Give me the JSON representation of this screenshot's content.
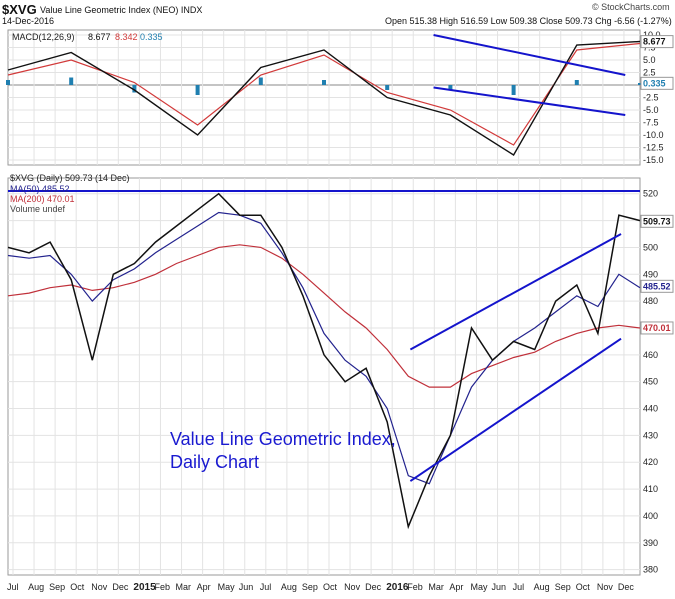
{
  "header": {
    "symbol": "$XVG",
    "name": "Value Line Geometric Index (NEO) INDX",
    "date": "14-Dec-2016",
    "quote": "Open 515.38  High 516.59  Low 509.38  Close 509.73  Chg -6.56 (-1.27%)",
    "source": "© StockCharts.com"
  },
  "macd_panel": {
    "label": "MACD(12,26,9)",
    "macd": "8.677",
    "signal": "8.342",
    "hist": "0.335",
    "ticks": [
      "10.0",
      "7.5",
      "5.0",
      "2.5",
      "0.0",
      "-2.5",
      "-5.0",
      "-7.5",
      "-10.0",
      "-12.5",
      "-15.0"
    ],
    "badge_macd": "8.677",
    "badge_hist": "0.335"
  },
  "price_panel": {
    "legend_main": "$XVG (Daily) 509.73 (14 Dec)",
    "legend_ma50": "MA(50) 485.52",
    "legend_ma200": "MA(200) 470.01",
    "legend_vol": "Volume undef",
    "ticks": [
      "520",
      "510",
      "500",
      "490",
      "480",
      "470",
      "460",
      "450",
      "440",
      "430",
      "420",
      "410",
      "400",
      "390",
      "380"
    ],
    "badge_last": "509.73",
    "badge_ma50": "485.52",
    "badge_ma200": "470.01",
    "annotation_line1": "Value Line Geometric Index,",
    "annotation_line2": "Daily Chart"
  },
  "x_axis": {
    "labels": [
      "Jul",
      "Aug",
      "Sep",
      "Oct",
      "Nov",
      "Dec",
      "2015",
      "Feb",
      "Mar",
      "Apr",
      "May",
      "Jun",
      "Jul",
      "Aug",
      "Sep",
      "Oct",
      "Nov",
      "Dec",
      "2016",
      "Feb",
      "Mar",
      "Apr",
      "May",
      "Jun",
      "Jul",
      "Aug",
      "Sep",
      "Oct",
      "Nov",
      "Dec"
    ]
  },
  "colors": {
    "price": "#111111",
    "ma50": "#23238e",
    "ma200": "#c0303a",
    "macd_line": "#111111",
    "signal_line": "#d23a3a",
    "histogram": "#1f7fb0",
    "trendline": "#1414cc",
    "grid": "#e3e3e3"
  },
  "chart_data": [
    {
      "type": "line",
      "title": "MACD(12,26,9)",
      "ylim": [
        -16,
        11
      ],
      "x": [
        0,
        3,
        6,
        9,
        12,
        15,
        18,
        21,
        24,
        27,
        30
      ],
      "series": [
        {
          "name": "MACD",
          "values": [
            3,
            6.5,
            -1,
            -10,
            3.5,
            7,
            -2.5,
            -6,
            -14,
            8,
            8.7
          ]
        },
        {
          "name": "Signal",
          "values": [
            2,
            5,
            0.5,
            -8,
            2,
            6,
            -1.5,
            -5,
            -12,
            7,
            8.3
          ]
        }
      ]
    },
    {
      "type": "line",
      "title": "$XVG (Daily) 509.73 (14 Dec)",
      "ylim": [
        378,
        524
      ],
      "x": [
        0,
        1,
        2,
        3,
        4,
        5,
        6,
        7,
        8,
        9,
        10,
        11,
        12,
        13,
        14,
        15,
        16,
        17,
        18,
        19,
        20,
        21,
        22,
        23,
        24,
        25,
        26,
        27,
        28,
        29,
        30
      ],
      "series": [
        {
          "name": "$XVG",
          "values": [
            500,
            498,
            502,
            488,
            458,
            490,
            494,
            502,
            508,
            514,
            520,
            512,
            512,
            500,
            482,
            460,
            450,
            455,
            435,
            396,
            415,
            430,
            470,
            458,
            465,
            462,
            480,
            486,
            468,
            512,
            510
          ]
        },
        {
          "name": "MA(50)",
          "values": [
            497,
            496,
            497,
            490,
            480,
            488,
            492,
            498,
            503,
            508,
            513,
            512,
            509,
            498,
            485,
            468,
            458,
            452,
            440,
            415,
            412,
            430,
            448,
            458,
            465,
            470,
            476,
            482,
            478,
            490,
            485
          ]
        },
        {
          "name": "MA(200)",
          "values": [
            482,
            483,
            485,
            486,
            484,
            485,
            487,
            490,
            494,
            497,
            500,
            501,
            500,
            496,
            490,
            483,
            476,
            470,
            462,
            452,
            448,
            448,
            453,
            456,
            459,
            461,
            465,
            468,
            470,
            471,
            470
          ]
        }
      ]
    }
  ]
}
